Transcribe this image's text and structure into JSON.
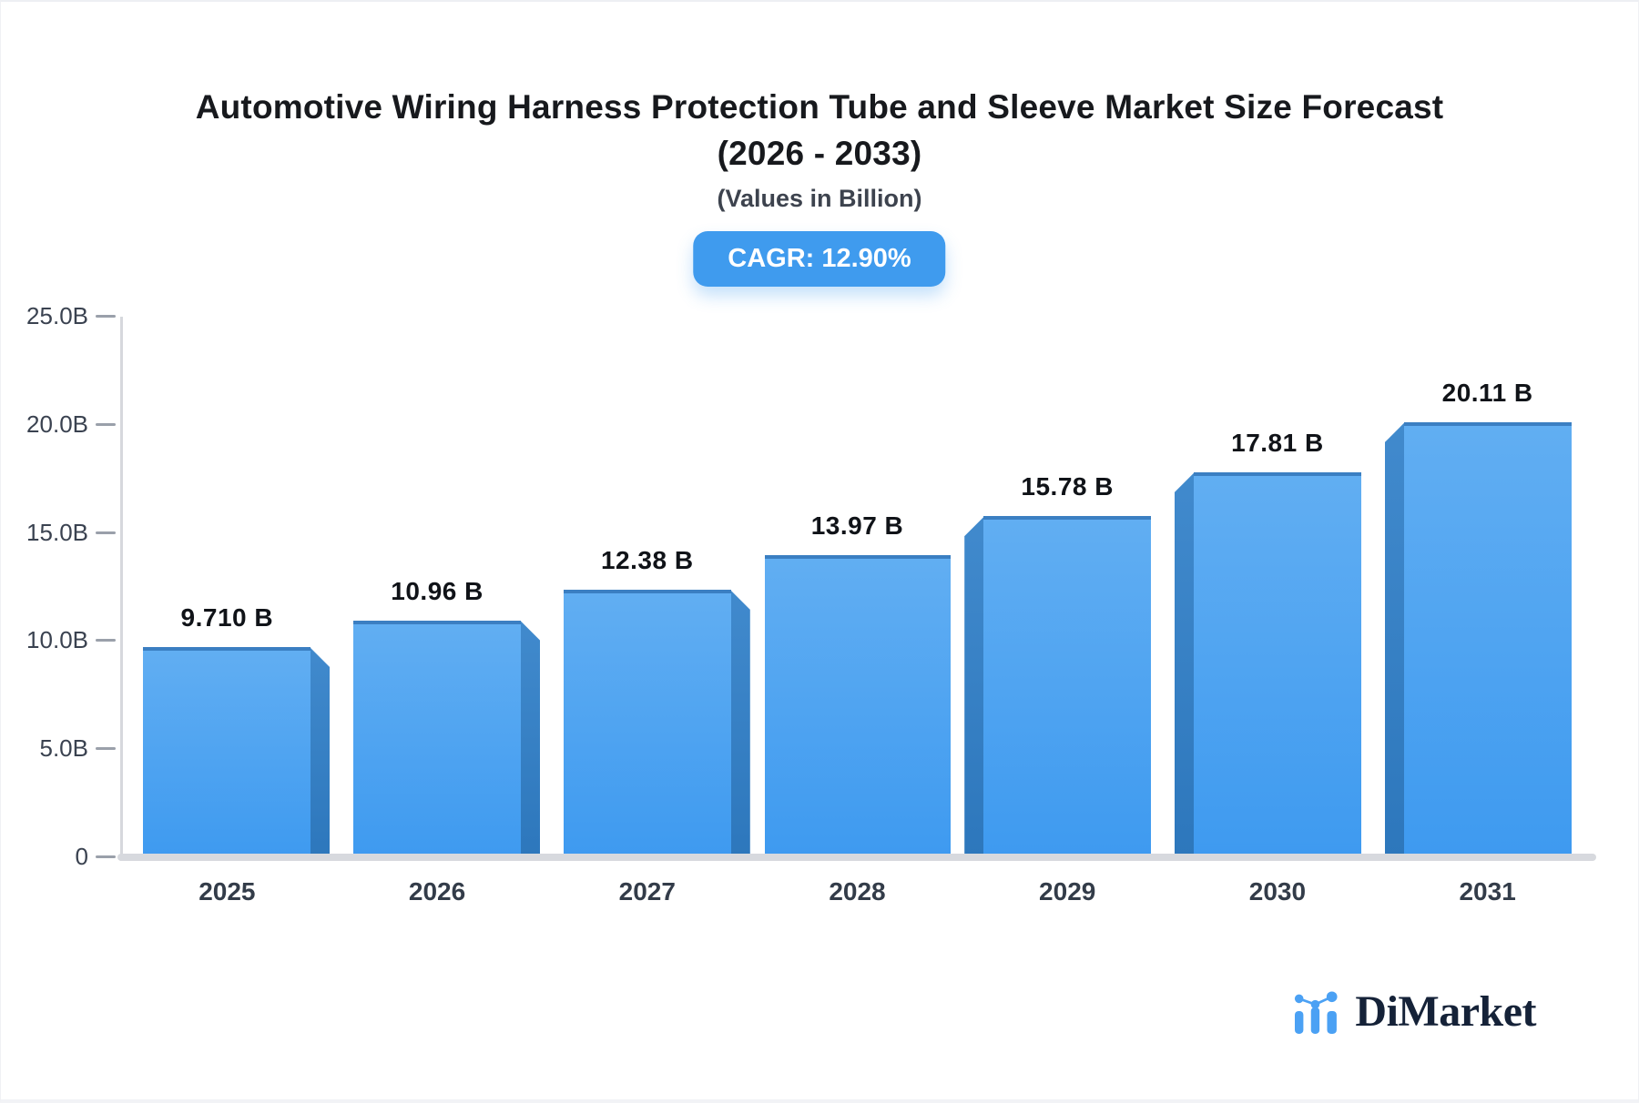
{
  "title": {
    "line1": "Automotive Wiring Harness Protection Tube and Sleeve Market Size Forecast",
    "line2": "(2026 - 2033)"
  },
  "subtitle": "(Values in Billion)",
  "badge": {
    "label": "CAGR: 12.90%"
  },
  "watermark": {
    "brand": "DiMarket"
  },
  "colors": {
    "bar_front_top": "#61aef2",
    "bar_front_bottom": "#3e9af0",
    "bar_top_edge": "#3b7fc2",
    "bar_side": "#2d77bc",
    "badge_bg": "#3f9bee",
    "axis_gray": "#d7d9de",
    "logo_blue": "#4ba1f4",
    "logo_navy": "#152238"
  },
  "chart_data": {
    "type": "bar",
    "title": "Automotive Wiring Harness Protection Tube and Sleeve Market Size Forecast (2026 - 2033)",
    "subtitle": "(Values in Billion)",
    "xlabel": "",
    "ylabel": "",
    "categories": [
      "2025",
      "2026",
      "2027",
      "2028",
      "2029",
      "2030",
      "2031"
    ],
    "values": [
      9.71,
      10.96,
      12.38,
      13.97,
      15.78,
      17.81,
      20.11
    ],
    "value_labels": [
      "9.710 B",
      "10.96 B",
      "12.38 B",
      "13.97 B",
      "15.78 B",
      "17.81 B",
      "20.11 B"
    ],
    "ylim": [
      0,
      25
    ],
    "yticks": [
      {
        "v": 0,
        "label": "0"
      },
      {
        "v": 5,
        "label": "5.0B"
      },
      {
        "v": 10,
        "label": "10.0B"
      },
      {
        "v": 15,
        "label": "15.0B"
      },
      {
        "v": 20,
        "label": "20.0B"
      },
      {
        "v": 25,
        "label": "25.0B"
      }
    ],
    "grid": false,
    "legend": false,
    "style_3d": true
  }
}
